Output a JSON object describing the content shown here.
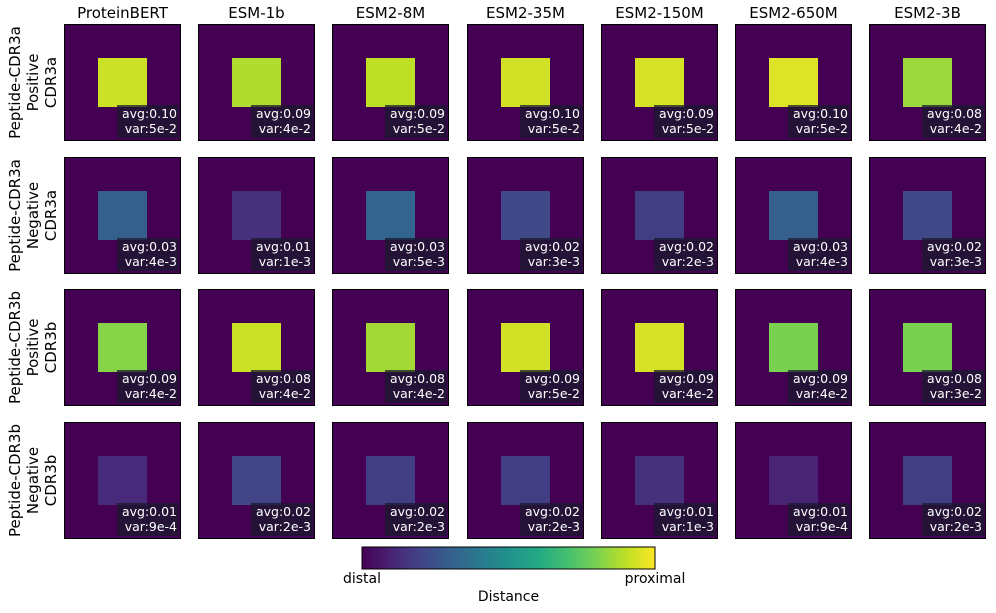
{
  "chart_data": {
    "type": "heatmap",
    "title": "",
    "columns": [
      "ProteinBERT",
      "ESM-1b",
      "ESM2-8M",
      "ESM2-35M",
      "ESM2-150M",
      "ESM2-650M",
      "ESM2-3B"
    ],
    "rows": [
      {
        "label_lines": [
          "Peptide-CDR3a",
          "Positive",
          "CDR3a"
        ],
        "cells": [
          {
            "avg": "avg:0.10",
            "var": "var:5e-2",
            "intensity": 0.92
          },
          {
            "avg": "avg:0.09",
            "var": "var:4e-2",
            "intensity": 0.88
          },
          {
            "avg": "avg:0.09",
            "var": "var:5e-2",
            "intensity": 0.9
          },
          {
            "avg": "avg:0.10",
            "var": "var:5e-2",
            "intensity": 0.93
          },
          {
            "avg": "avg:0.09",
            "var": "var:5e-2",
            "intensity": 0.94
          },
          {
            "avg": "avg:0.10",
            "var": "var:5e-2",
            "intensity": 0.95
          },
          {
            "avg": "avg:0.08",
            "var": "var:4e-2",
            "intensity": 0.85
          }
        ]
      },
      {
        "label_lines": [
          "Peptide-CDR3a",
          "Negative",
          "CDR3a"
        ],
        "cells": [
          {
            "avg": "avg:0.03",
            "var": "var:4e-3",
            "intensity": 0.3
          },
          {
            "avg": "avg:0.01",
            "var": "var:1e-3",
            "intensity": 0.14
          },
          {
            "avg": "avg:0.03",
            "var": "var:5e-3",
            "intensity": 0.32
          },
          {
            "avg": "avg:0.02",
            "var": "var:3e-3",
            "intensity": 0.22
          },
          {
            "avg": "avg:0.02",
            "var": "var:2e-3",
            "intensity": 0.18
          },
          {
            "avg": "avg:0.03",
            "var": "var:4e-3",
            "intensity": 0.3
          },
          {
            "avg": "avg:0.02",
            "var": "var:3e-3",
            "intensity": 0.22
          }
        ]
      },
      {
        "label_lines": [
          "Peptide-CDR3b",
          "Positive",
          "CDR3b"
        ],
        "cells": [
          {
            "avg": "avg:0.09",
            "var": "var:4e-2",
            "intensity": 0.82
          },
          {
            "avg": "avg:0.08",
            "var": "var:4e-2",
            "intensity": 0.92
          },
          {
            "avg": "avg:0.08",
            "var": "var:4e-2",
            "intensity": 0.86
          },
          {
            "avg": "avg:0.09",
            "var": "var:5e-2",
            "intensity": 0.93
          },
          {
            "avg": "avg:0.09",
            "var": "var:4e-2",
            "intensity": 0.94
          },
          {
            "avg": "avg:0.09",
            "var": "var:4e-2",
            "intensity": 0.8
          },
          {
            "avg": "avg:0.08",
            "var": "var:3e-2",
            "intensity": 0.8
          }
        ]
      },
      {
        "label_lines": [
          "Peptide-CDR3b",
          "Negative",
          "CDR3b"
        ],
        "cells": [
          {
            "avg": "avg:0.01",
            "var": "var:9e-4",
            "intensity": 0.12
          },
          {
            "avg": "avg:0.02",
            "var": "var:2e-3",
            "intensity": 0.2
          },
          {
            "avg": "avg:0.02",
            "var": "var:2e-3",
            "intensity": 0.18
          },
          {
            "avg": "avg:0.02",
            "var": "var:2e-3",
            "intensity": 0.18
          },
          {
            "avg": "avg:0.01",
            "var": "var:1e-3",
            "intensity": 0.14
          },
          {
            "avg": "avg:0.01",
            "var": "var:9e-4",
            "intensity": 0.1
          },
          {
            "avg": "avg:0.02",
            "var": "var:2e-3",
            "intensity": 0.18
          }
        ]
      }
    ],
    "colorbar": {
      "min_label": "distal",
      "max_label": "proximal",
      "title": "Distance",
      "colormap": "viridis"
    }
  },
  "colors": {
    "viridis": [
      "#440154",
      "#482475",
      "#414487",
      "#355f8d",
      "#2a788e",
      "#21918c",
      "#22a884",
      "#44bf70",
      "#7ad151",
      "#bddf26",
      "#fde725"
    ],
    "stat_background": "#1a1a2e"
  }
}
